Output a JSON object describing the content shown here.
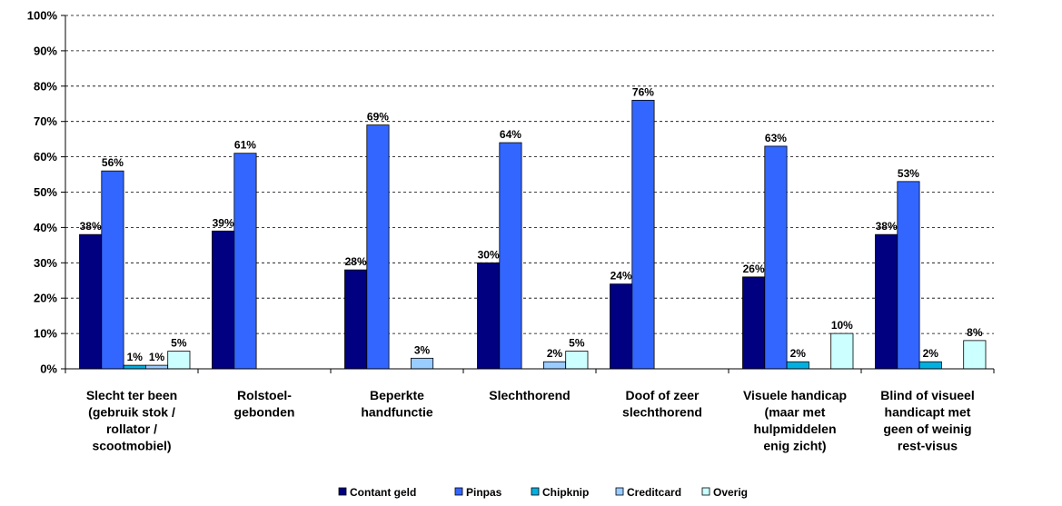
{
  "chart_data": {
    "type": "bar",
    "title": "",
    "xlabel": "",
    "ylabel": "",
    "ylim": [
      0,
      100
    ],
    "ytick_labels": [
      "0%",
      "10%",
      "20%",
      "30%",
      "40%",
      "50%",
      "60%",
      "70%",
      "80%",
      "90%",
      "100%"
    ],
    "grid": "horizontal dashed",
    "legend_position": "bottom",
    "categories": [
      [
        "Slecht ter been",
        "(gebruik stok /",
        "rollator /",
        "scootmobiel)"
      ],
      [
        "Rolstoel-",
        "gebonden"
      ],
      [
        "Beperkte",
        "handfunctie"
      ],
      [
        "Slechthorend"
      ],
      [
        "Doof of zeer",
        "slechthorend"
      ],
      [
        "Visuele handicap",
        "(maar met",
        "hulpmiddelen",
        "enig zicht)"
      ],
      [
        "Blind of visueel",
        "handicapt met",
        "geen of weinig",
        "rest-visus"
      ]
    ],
    "series": [
      {
        "name": "Contant geld",
        "color": "#000080",
        "values": [
          38,
          39,
          28,
          30,
          24,
          26,
          38
        ]
      },
      {
        "name": "Pinpas",
        "color": "#3366FF",
        "values": [
          56,
          61,
          69,
          64,
          76,
          63,
          53
        ]
      },
      {
        "name": "Chipknip",
        "color": "#00B0E0",
        "values": [
          1,
          null,
          null,
          null,
          null,
          2,
          2
        ]
      },
      {
        "name": "Creditcard",
        "color": "#99CCFF",
        "values": [
          1,
          null,
          3,
          2,
          null,
          null,
          null
        ]
      },
      {
        "name": "Overig",
        "color": "#CCFFFF",
        "values": [
          5,
          null,
          null,
          5,
          null,
          10,
          8
        ]
      }
    ],
    "data_labels": [
      [
        "38%",
        "56%",
        "1%",
        "1%",
        "5%"
      ],
      [
        "39%",
        "61%",
        null,
        null,
        null
      ],
      [
        "28%",
        "69%",
        null,
        "3%",
        null
      ],
      [
        "30%",
        "64%",
        null,
        "2%",
        "5%"
      ],
      [
        "24%",
        "76%",
        null,
        null,
        null
      ],
      [
        "26%",
        "63%",
        "2%",
        null,
        "10%"
      ],
      [
        "38%",
        "53%",
        "2%",
        null,
        "8%"
      ]
    ]
  }
}
